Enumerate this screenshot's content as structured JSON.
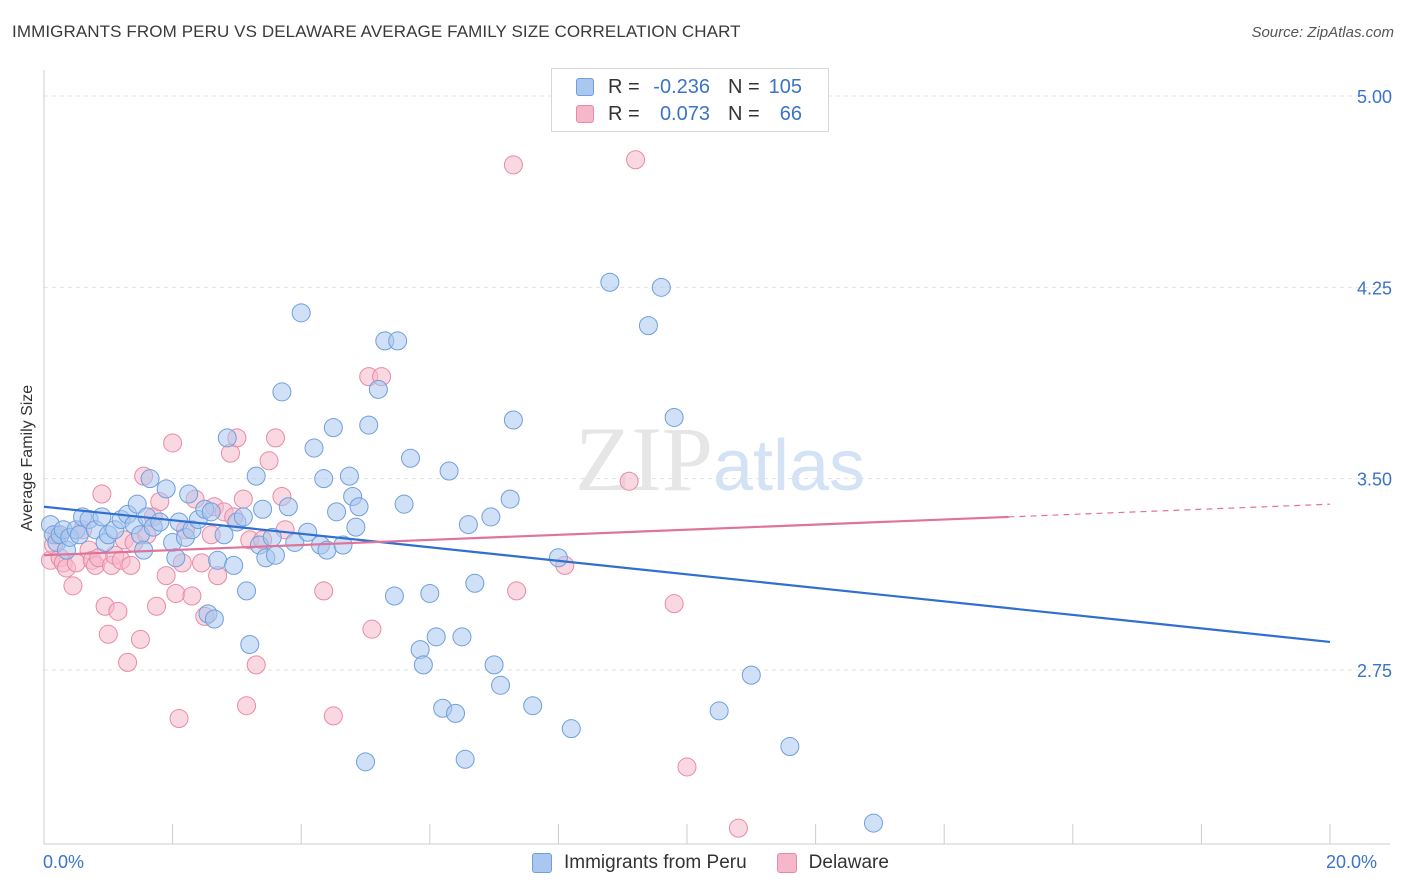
{
  "title": "IMMIGRANTS FROM PERU VS DELAWARE AVERAGE FAMILY SIZE CORRELATION CHART",
  "source": "Source: ZipAtlas.com",
  "watermark": "ZIPatlas",
  "legend": {
    "rows": [
      {
        "r_label": "R =",
        "r_value": "-0.236",
        "n_label": "N =",
        "n_value": "105",
        "color": "#a9c7ef",
        "border": "#6f9fdc"
      },
      {
        "r_label": "R =",
        "r_value": "0.073",
        "n_label": "N =",
        "n_value": "66",
        "color": "#f5b8ca",
        "border": "#e88aa6"
      }
    ]
  },
  "bottom_legend": [
    "Immigrants from Peru",
    "Delaware"
  ],
  "x_tick_labels": {
    "left": "0.0%",
    "right": "20.0%"
  },
  "chart_data": {
    "type": "scatter",
    "title": "IMMIGRANTS FROM PERU VS DELAWARE AVERAGE FAMILY SIZE CORRELATION CHART",
    "xlabel": "",
    "ylabel": "Average Family Size",
    "xlim": [
      0,
      20
    ],
    "ylim": [
      2.0,
      5.1
    ],
    "y_ticks": [
      5.0,
      4.25,
      3.5,
      2.75
    ],
    "y_tick_labels": [
      "5.00",
      "4.25",
      "3.50",
      "2.75"
    ],
    "grid": true,
    "series": [
      {
        "name": "Immigrants from Peru",
        "color": "#6f9fdc",
        "fill": "#a9c7ef",
        "trend": {
          "x": [
            0,
            20
          ],
          "y": [
            3.39,
            2.86
          ]
        },
        "points": [
          [
            0.1,
            3.32
          ],
          [
            0.15,
            3.28
          ],
          [
            0.2,
            3.25
          ],
          [
            0.25,
            3.28
          ],
          [
            0.3,
            3.3
          ],
          [
            0.35,
            3.22
          ],
          [
            0.4,
            3.27
          ],
          [
            0.5,
            3.3
          ],
          [
            0.55,
            3.28
          ],
          [
            0.6,
            3.35
          ],
          [
            0.7,
            3.34
          ],
          [
            0.8,
            3.3
          ],
          [
            0.9,
            3.35
          ],
          [
            0.95,
            3.25
          ],
          [
            1.0,
            3.28
          ],
          [
            1.1,
            3.3
          ],
          [
            1.2,
            3.34
          ],
          [
            1.3,
            3.36
          ],
          [
            1.4,
            3.32
          ],
          [
            1.45,
            3.4
          ],
          [
            1.5,
            3.28
          ],
          [
            1.55,
            3.22
          ],
          [
            1.6,
            3.35
          ],
          [
            1.65,
            3.5
          ],
          [
            1.7,
            3.31
          ],
          [
            1.8,
            3.33
          ],
          [
            1.9,
            3.46
          ],
          [
            2.0,
            3.25
          ],
          [
            2.05,
            3.19
          ],
          [
            2.1,
            3.33
          ],
          [
            2.2,
            3.27
          ],
          [
            2.25,
            3.44
          ],
          [
            2.3,
            3.3
          ],
          [
            2.4,
            3.34
          ],
          [
            2.5,
            3.38
          ],
          [
            2.55,
            2.97
          ],
          [
            2.6,
            3.37
          ],
          [
            2.65,
            2.95
          ],
          [
            2.7,
            3.18
          ],
          [
            2.8,
            3.28
          ],
          [
            2.85,
            3.66
          ],
          [
            2.95,
            3.16
          ],
          [
            3.0,
            3.33
          ],
          [
            3.1,
            3.35
          ],
          [
            3.15,
            3.06
          ],
          [
            3.2,
            2.85
          ],
          [
            3.3,
            3.51
          ],
          [
            3.35,
            3.24
          ],
          [
            3.4,
            3.38
          ],
          [
            3.45,
            3.19
          ],
          [
            3.55,
            3.27
          ],
          [
            3.6,
            3.2
          ],
          [
            3.7,
            3.84
          ],
          [
            3.8,
            3.39
          ],
          [
            3.9,
            3.25
          ],
          [
            4.0,
            4.15
          ],
          [
            4.1,
            3.29
          ],
          [
            4.2,
            3.62
          ],
          [
            4.3,
            3.24
          ],
          [
            4.35,
            3.5
          ],
          [
            4.4,
            3.22
          ],
          [
            4.5,
            3.7
          ],
          [
            4.55,
            3.37
          ],
          [
            4.65,
            3.24
          ],
          [
            4.75,
            3.51
          ],
          [
            4.8,
            3.43
          ],
          [
            4.85,
            3.31
          ],
          [
            4.9,
            3.39
          ],
          [
            5.0,
            2.39
          ],
          [
            5.05,
            3.71
          ],
          [
            5.2,
            3.85
          ],
          [
            5.3,
            4.04
          ],
          [
            5.45,
            3.04
          ],
          [
            5.5,
            4.04
          ],
          [
            5.6,
            3.4
          ],
          [
            5.7,
            3.58
          ],
          [
            5.85,
            2.83
          ],
          [
            5.9,
            2.77
          ],
          [
            6.0,
            3.05
          ],
          [
            6.1,
            2.88
          ],
          [
            6.2,
            2.6
          ],
          [
            6.3,
            3.53
          ],
          [
            6.4,
            2.58
          ],
          [
            6.5,
            2.88
          ],
          [
            6.55,
            2.4
          ],
          [
            6.6,
            3.32
          ],
          [
            6.7,
            3.09
          ],
          [
            6.95,
            3.35
          ],
          [
            7.0,
            2.77
          ],
          [
            7.1,
            2.69
          ],
          [
            7.25,
            3.42
          ],
          [
            7.3,
            3.73
          ],
          [
            7.6,
            2.61
          ],
          [
            8.0,
            3.19
          ],
          [
            8.2,
            2.52
          ],
          [
            8.8,
            4.27
          ],
          [
            9.4,
            4.1
          ],
          [
            9.6,
            4.25
          ],
          [
            9.8,
            3.74
          ],
          [
            10.5,
            2.59
          ],
          [
            11.0,
            2.73
          ],
          [
            11.6,
            2.45
          ],
          [
            12.9,
            2.15
          ]
        ]
      },
      {
        "name": "Delaware",
        "color": "#e88aa6",
        "fill": "#f5b8ca",
        "trend": {
          "x": [
            0,
            15
          ],
          "y": [
            3.2,
            3.35
          ]
        },
        "trend_dashed": {
          "x": [
            15,
            20
          ],
          "y": [
            3.35,
            3.4
          ]
        },
        "points": [
          [
            0.1,
            3.18
          ],
          [
            0.15,
            3.24
          ],
          [
            0.2,
            3.28
          ],
          [
            0.25,
            3.19
          ],
          [
            0.3,
            3.17
          ],
          [
            0.35,
            3.15
          ],
          [
            0.45,
            3.08
          ],
          [
            0.5,
            3.17
          ],
          [
            0.6,
            3.3
          ],
          [
            0.7,
            3.22
          ],
          [
            0.75,
            3.18
          ],
          [
            0.8,
            3.16
          ],
          [
            0.85,
            3.19
          ],
          [
            0.9,
            3.44
          ],
          [
            0.95,
            3.0
          ],
          [
            1.0,
            2.89
          ],
          [
            1.05,
            3.16
          ],
          [
            1.1,
            3.2
          ],
          [
            1.15,
            2.98
          ],
          [
            1.2,
            3.18
          ],
          [
            1.25,
            3.26
          ],
          [
            1.3,
            2.78
          ],
          [
            1.35,
            3.16
          ],
          [
            1.4,
            3.25
          ],
          [
            1.5,
            2.87
          ],
          [
            1.55,
            3.51
          ],
          [
            1.6,
            3.28
          ],
          [
            1.7,
            3.35
          ],
          [
            1.75,
            3.0
          ],
          [
            1.8,
            3.41
          ],
          [
            1.9,
            3.12
          ],
          [
            2.0,
            3.64
          ],
          [
            2.05,
            3.05
          ],
          [
            2.1,
            2.56
          ],
          [
            2.15,
            3.17
          ],
          [
            2.2,
            3.3
          ],
          [
            2.3,
            3.04
          ],
          [
            2.35,
            3.42
          ],
          [
            2.45,
            3.17
          ],
          [
            2.5,
            2.96
          ],
          [
            2.6,
            3.28
          ],
          [
            2.65,
            3.39
          ],
          [
            2.7,
            3.12
          ],
          [
            2.8,
            3.37
          ],
          [
            2.9,
            3.6
          ],
          [
            2.95,
            3.35
          ],
          [
            3.0,
            3.66
          ],
          [
            3.1,
            3.42
          ],
          [
            3.15,
            2.61
          ],
          [
            3.2,
            3.26
          ],
          [
            3.3,
            2.77
          ],
          [
            3.4,
            3.26
          ],
          [
            3.5,
            3.57
          ],
          [
            3.6,
            3.66
          ],
          [
            3.7,
            3.43
          ],
          [
            3.75,
            3.3
          ],
          [
            4.35,
            3.06
          ],
          [
            4.5,
            2.57
          ],
          [
            5.05,
            3.9
          ],
          [
            5.1,
            2.91
          ],
          [
            5.25,
            3.9
          ],
          [
            7.3,
            4.73
          ],
          [
            7.35,
            3.06
          ],
          [
            8.1,
            3.16
          ],
          [
            9.1,
            3.49
          ],
          [
            9.2,
            4.75
          ],
          [
            9.8,
            3.01
          ],
          [
            10.0,
            2.37
          ],
          [
            10.8,
            2.13
          ]
        ]
      }
    ]
  }
}
